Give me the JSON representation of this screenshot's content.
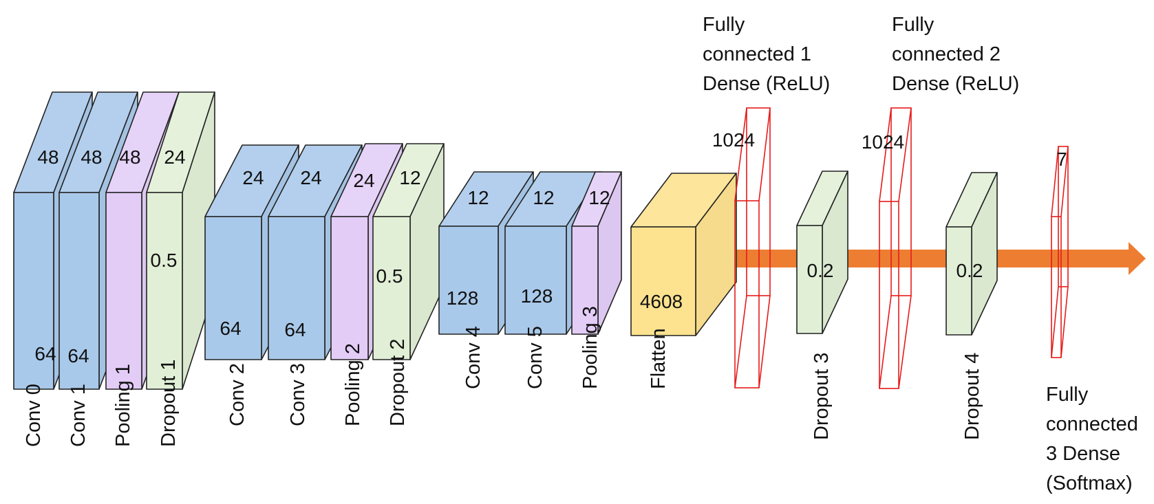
{
  "colors": {
    "conv": "#a9c9ea",
    "pool": "#e3cdf7",
    "dropout": "#e1efd6",
    "flatten": "#fde28f",
    "dense": "#e51b1b",
    "arrow": "#ed7d31"
  },
  "layers": [
    {
      "name": "Conv 0",
      "kind": "conv",
      "top": "48",
      "depth": "64"
    },
    {
      "name": "Conv 1",
      "kind": "conv",
      "top": "48",
      "depth": "64"
    },
    {
      "name": "Pooling 1",
      "kind": "pool",
      "top": "48"
    },
    {
      "name": "Dropout 1",
      "kind": "dropout",
      "top": "24",
      "rate": "0.5"
    },
    {
      "name": "Conv 2",
      "kind": "conv",
      "top": "24",
      "depth": "64"
    },
    {
      "name": "Conv 3",
      "kind": "conv",
      "top": "24",
      "depth": "64"
    },
    {
      "name": "Pooling 2",
      "kind": "pool",
      "top": "24"
    },
    {
      "name": "Dropout 2",
      "kind": "dropout",
      "top": "12",
      "rate": "0.5"
    },
    {
      "name": "Conv 4",
      "kind": "conv",
      "top": "12",
      "depth": "128"
    },
    {
      "name": "Conv 5",
      "kind": "conv",
      "top": "12",
      "depth": "128"
    },
    {
      "name": "Pooling 3",
      "kind": "pool",
      "top": "12"
    },
    {
      "name": "Flatten",
      "kind": "flatten",
      "units": "4608"
    },
    {
      "name": "Dropout 3",
      "kind": "dropout",
      "rate": "0.2"
    },
    {
      "name": "Dropout 4",
      "kind": "dropout",
      "rate": "0.2"
    }
  ],
  "dense": [
    {
      "title": [
        "Fully",
        "connected 1",
        "Dense (ReLU)"
      ],
      "units": "1024"
    },
    {
      "title": [
        "Fully",
        "connected 2",
        "Dense (ReLU)"
      ],
      "units": "1024"
    },
    {
      "title": [
        "Fully",
        "connected",
        "3 Dense",
        "(Softmax)"
      ],
      "units": "7"
    }
  ]
}
